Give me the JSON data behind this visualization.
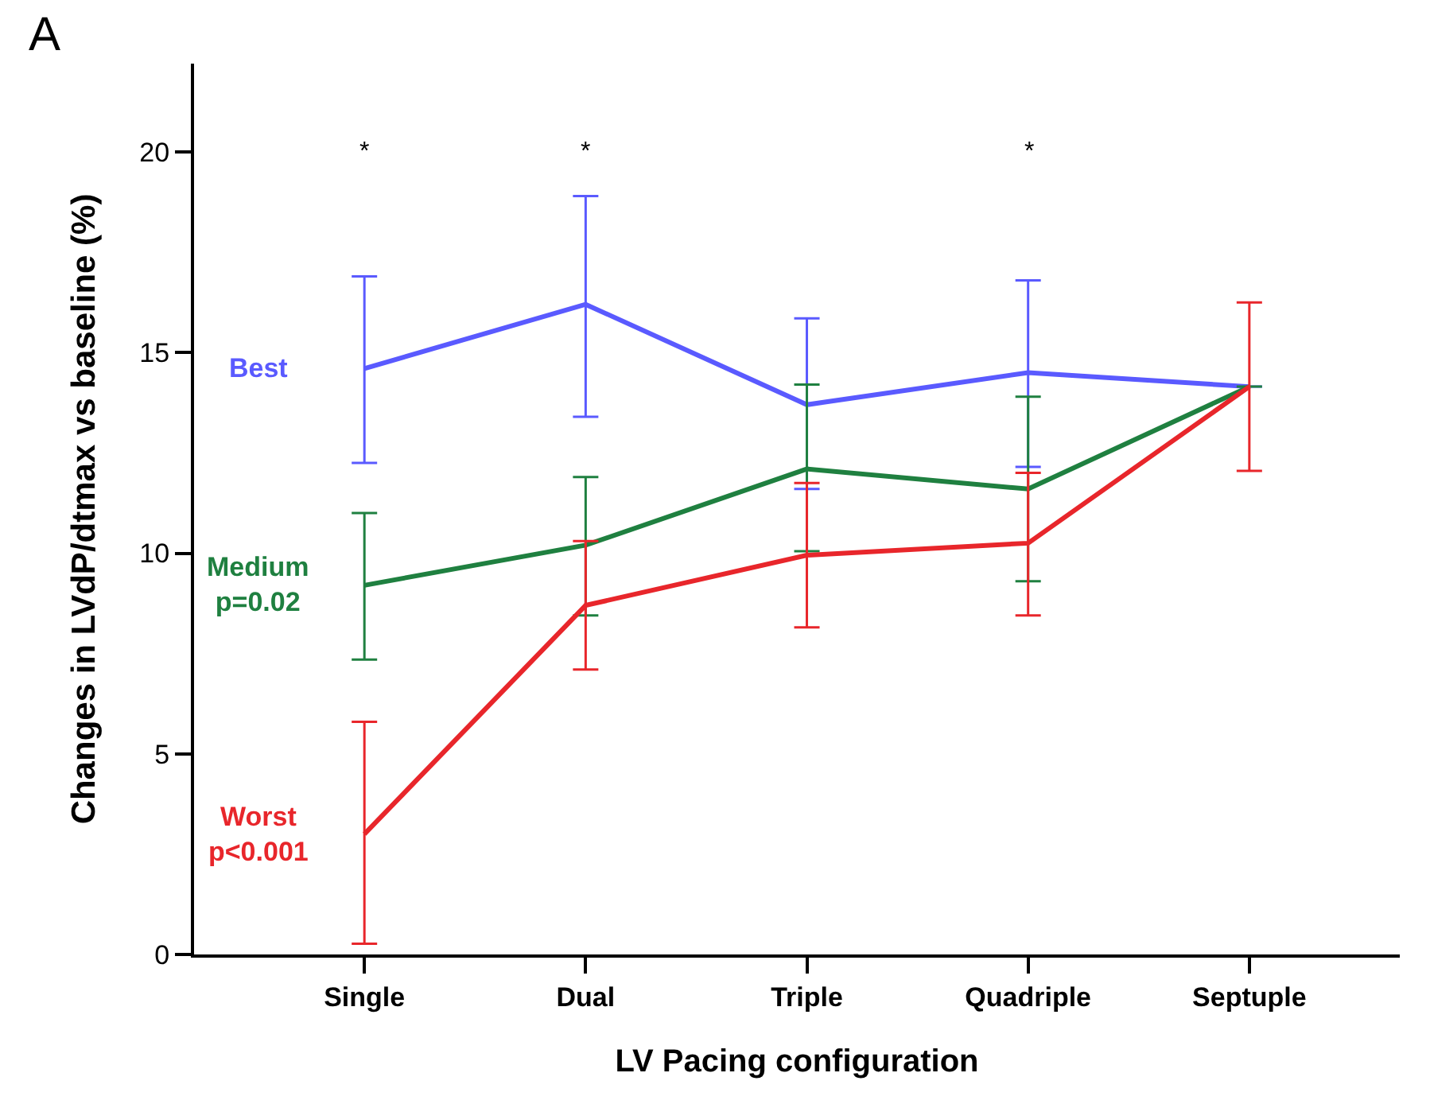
{
  "chart_data": {
    "type": "line",
    "title": "A",
    "xlabel": "LV Pacing configuration",
    "ylabel": "Changes in LVdP/dtmax vs baseline (%)",
    "categories": [
      "Single",
      "Dual",
      "Triple",
      "Quadriple",
      "Septuple"
    ],
    "series": [
      {
        "name": "Best",
        "color": "#5a5aff",
        "values": [
          14.6,
          16.2,
          13.7,
          14.5,
          14.15
        ],
        "errors": [
          [
            12.25,
            16.9
          ],
          [
            13.4,
            18.9
          ],
          [
            11.6,
            15.85
          ],
          [
            12.15,
            16.8
          ],
          null
        ]
      },
      {
        "name": "Medium\np=0.02",
        "color": "#1f8040",
        "values": [
          9.2,
          10.2,
          12.1,
          11.6,
          14.15
        ],
        "errors": [
          [
            7.35,
            11.0
          ],
          [
            8.45,
            11.9
          ],
          [
            10.05,
            14.2
          ],
          [
            9.3,
            13.9
          ],
          null
        ]
      },
      {
        "name": "Worst\np<0.001",
        "color": "#e8262b",
        "values": [
          3.0,
          8.7,
          9.95,
          10.25,
          14.15
        ],
        "errors": [
          [
            0.27,
            5.8
          ],
          [
            7.1,
            10.3
          ],
          [
            8.15,
            11.75
          ],
          [
            8.45,
            12.0
          ],
          [
            12.05,
            16.25
          ]
        ]
      }
    ],
    "annotations": [
      "*",
      "*",
      "*"
    ],
    "ylim": [
      0,
      22.2
    ],
    "yticks": [
      0,
      5,
      10,
      15,
      20
    ],
    "legend": false,
    "marker": "none",
    "line_style": "solid"
  }
}
